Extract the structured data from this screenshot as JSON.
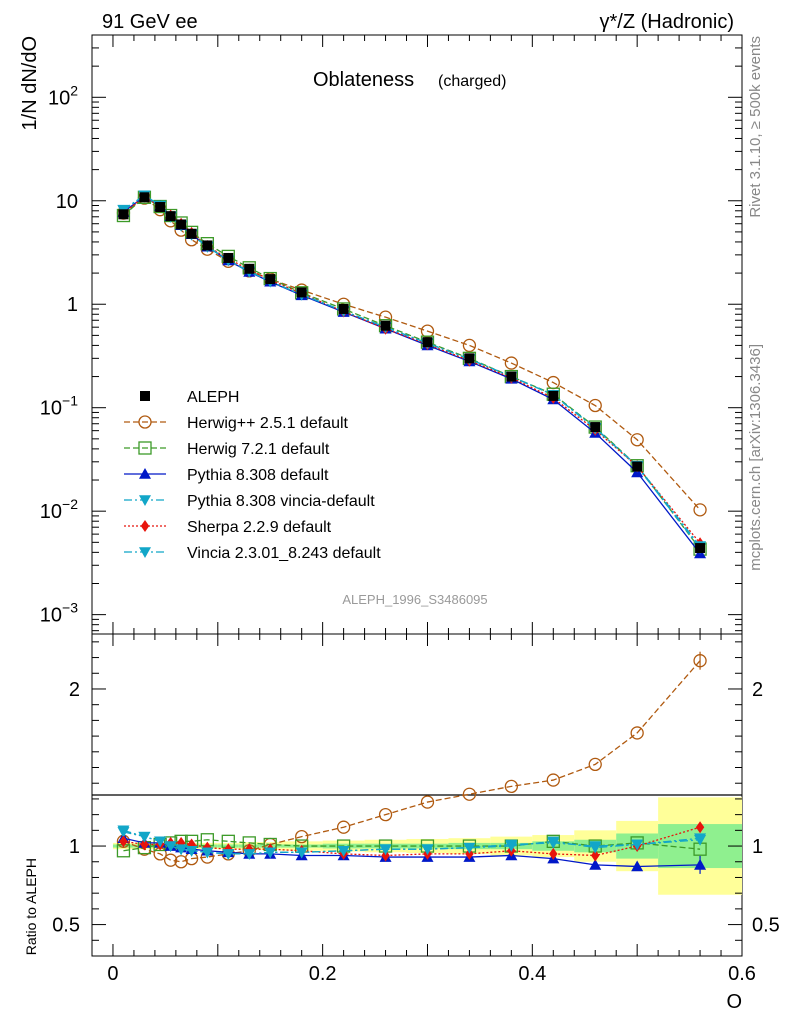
{
  "header": {
    "left": "91 GeV ee",
    "right": "γ*/Z (Hadronic)"
  },
  "side_labels": {
    "rivet": "Rivet 3.1.10, ≥ 500k events",
    "mcplots": "mcplots.cern.ch [arXiv:1306.3436]"
  },
  "chart_data": [
    {
      "panel": "main",
      "type": "line",
      "title": "Oblateness",
      "subtitle": "(charged)",
      "watermark": "ALEPH_1996_S3486095",
      "ylabel": "1/N dN/dO",
      "xlabel": "O",
      "yscale": "log",
      "xlim": [
        -0.02,
        0.6
      ],
      "ylim": [
        0.00065,
        400
      ],
      "y_tick_labels": [
        "10^-3",
        "10^-2",
        "10^-1",
        "1",
        "10",
        "10^2"
      ],
      "legend_position": "center-left",
      "x": [
        0.01,
        0.03,
        0.045,
        0.055,
        0.065,
        0.075,
        0.09,
        0.11,
        0.13,
        0.15,
        0.18,
        0.22,
        0.26,
        0.3,
        0.34,
        0.38,
        0.42,
        0.46,
        0.5,
        0.56
      ],
      "series": [
        {
          "name": "ALEPH",
          "style": "data",
          "color": "#000000",
          "marker": "square-filled",
          "values": [
            7.4,
            10.8,
            8.7,
            7.1,
            5.9,
            4.8,
            3.7,
            2.8,
            2.2,
            1.75,
            1.3,
            0.9,
            0.62,
            0.43,
            0.3,
            0.2,
            0.13,
            0.065,
            0.027,
            0.0044
          ]
        },
        {
          "name": "Herwig++ 2.5.1 default",
          "color": "#b05a10",
          "dash": "6,3",
          "marker": "circle-open",
          "values": [
            7.6,
            10.6,
            8.2,
            6.4,
            5.2,
            4.2,
            3.4,
            2.6,
            2.1,
            1.75,
            1.37,
            1.0,
            0.75,
            0.55,
            0.4,
            0.27,
            0.175,
            0.105,
            0.049,
            0.0103
          ]
        },
        {
          "name": "Herwig 7.2.1 default",
          "color": "#3c9a28",
          "dash": "6,3",
          "marker": "square-open",
          "values": [
            7.2,
            10.8,
            8.8,
            7.2,
            6.1,
            4.95,
            3.85,
            2.9,
            2.25,
            1.77,
            1.29,
            0.9,
            0.62,
            0.43,
            0.3,
            0.2,
            0.135,
            0.065,
            0.0275,
            0.0043
          ]
        },
        {
          "name": "Pythia 8.308 default",
          "color": "#0018c8",
          "dash": "",
          "marker": "triangle-up",
          "values": [
            7.8,
            11.0,
            8.9,
            7.1,
            5.8,
            4.75,
            3.6,
            2.65,
            2.05,
            1.65,
            1.22,
            0.84,
            0.58,
            0.4,
            0.28,
            0.19,
            0.12,
            0.057,
            0.0237,
            0.0039
          ]
        },
        {
          "name": "Pythia 8.308 vincia-default",
          "color": "#12a6c8",
          "dash": "8,3,2,3",
          "marker": "triangle-down",
          "values": [
            8.1,
            11.3,
            8.9,
            7.0,
            5.75,
            4.7,
            3.58,
            2.66,
            2.08,
            1.66,
            1.24,
            0.86,
            0.6,
            0.42,
            0.295,
            0.2,
            0.133,
            0.064,
            0.027,
            0.0044
          ]
        },
        {
          "name": "Sherpa 2.2.9 default",
          "color": "#e8140c",
          "dash": "2,2",
          "marker": "diamond",
          "values": [
            7.6,
            11.0,
            8.8,
            7.2,
            6.0,
            4.9,
            3.65,
            2.75,
            2.16,
            1.72,
            1.27,
            0.85,
            0.58,
            0.41,
            0.285,
            0.195,
            0.124,
            0.061,
            0.0272,
            0.0049
          ]
        },
        {
          "name": "Vincia 2.3.01_8.243 default",
          "color": "#12a6c8",
          "dash": "8,3,2,3",
          "marker": "triangle-down",
          "values": [
            8.2,
            11.3,
            9.0,
            7.1,
            5.8,
            4.75,
            3.62,
            2.66,
            2.07,
            1.66,
            1.24,
            0.86,
            0.6,
            0.42,
            0.295,
            0.2,
            0.133,
            0.063,
            0.0275,
            0.0046
          ]
        }
      ]
    },
    {
      "panel": "ratio",
      "type": "line",
      "ylabel": "Ratio to ALEPH",
      "xlabel": "O",
      "xlim": [
        -0.02,
        0.6
      ],
      "ylim": [
        0.3,
        2.35
      ],
      "x_tick_labels": [
        "0",
        "0.2",
        "0.4",
        "0.6"
      ],
      "y_tick_labels": [
        "0.5",
        "1",
        "2"
      ],
      "x": [
        0.01,
        0.03,
        0.045,
        0.055,
        0.065,
        0.075,
        0.09,
        0.11,
        0.13,
        0.15,
        0.18,
        0.22,
        0.26,
        0.3,
        0.34,
        0.38,
        0.42,
        0.46,
        0.5,
        0.56
      ],
      "band_edges": [
        0.0,
        0.02,
        0.04,
        0.05,
        0.06,
        0.07,
        0.08,
        0.1,
        0.12,
        0.14,
        0.16,
        0.2,
        0.24,
        0.28,
        0.32,
        0.36,
        0.4,
        0.44,
        0.48,
        0.52,
        0.6
      ],
      "uncertainty_stat": [
        0.01,
        0.01,
        0.01,
        0.01,
        0.01,
        0.01,
        0.01,
        0.01,
        0.01,
        0.01,
        0.01,
        0.015,
        0.015,
        0.015,
        0.02,
        0.02,
        0.03,
        0.04,
        0.08,
        0.14
      ],
      "uncertainty_total": [
        0.02,
        0.02,
        0.02,
        0.02,
        0.02,
        0.02,
        0.02,
        0.02,
        0.025,
        0.025,
        0.03,
        0.035,
        0.04,
        0.045,
        0.05,
        0.06,
        0.07,
        0.1,
        0.16,
        0.31
      ],
      "series": [
        {
          "name": "Herwig++ 2.5.1 default",
          "color": "#b05a10",
          "dash": "6,3",
          "marker": "circle-open",
          "values": [
            1.03,
            0.98,
            0.95,
            0.91,
            0.9,
            0.92,
            0.93,
            0.95,
            0.97,
            1.01,
            1.06,
            1.12,
            1.2,
            1.28,
            1.33,
            1.38,
            1.42,
            1.52,
            1.72,
            2.18
          ]
        },
        {
          "name": "Herwig 7.2.1 default",
          "color": "#3c9a28",
          "dash": "6,3",
          "marker": "square-open",
          "values": [
            0.97,
            0.99,
            1.01,
            1.02,
            1.03,
            1.03,
            1.04,
            1.03,
            1.02,
            1.01,
            1.0,
            1.0,
            1.0,
            1.0,
            1.0,
            1.0,
            1.03,
            1.0,
            1.02,
            0.98
          ]
        },
        {
          "name": "Pythia 8.308 default",
          "color": "#0018c8",
          "dash": "",
          "marker": "triangle-up",
          "values": [
            1.05,
            1.02,
            1.02,
            1.0,
            0.99,
            0.98,
            0.97,
            0.96,
            0.95,
            0.95,
            0.94,
            0.94,
            0.93,
            0.93,
            0.93,
            0.94,
            0.92,
            0.88,
            0.87,
            0.88
          ]
        },
        {
          "name": "Pythia 8.308 vincia-default",
          "color": "#12a6c8",
          "dash": "8,3,2,3",
          "marker": "triangle-down",
          "values": [
            1.09,
            1.06,
            1.03,
            1.0,
            0.98,
            0.97,
            0.96,
            0.95,
            0.95,
            0.96,
            0.96,
            0.97,
            0.98,
            0.98,
            0.99,
            1.01,
            1.02,
            1.0,
            1.01,
            1.04
          ]
        },
        {
          "name": "Sherpa 2.2.9 default",
          "color": "#e8140c",
          "dash": "2,2",
          "marker": "diamond",
          "values": [
            1.03,
            1.01,
            1.01,
            1.02,
            1.02,
            1.01,
            0.99,
            0.98,
            0.98,
            0.98,
            0.97,
            0.95,
            0.94,
            0.95,
            0.95,
            0.97,
            0.95,
            0.94,
            1.0,
            1.12
          ]
        },
        {
          "name": "Vincia 2.3.01_8.243 default",
          "color": "#12a6c8",
          "dash": "8,3,2,3",
          "marker": "triangle-down",
          "values": [
            1.1,
            1.06,
            1.03,
            1.0,
            0.98,
            0.97,
            0.96,
            0.95,
            0.95,
            0.96,
            0.96,
            0.97,
            0.98,
            0.98,
            0.99,
            1.0,
            1.03,
            0.99,
            1.01,
            1.05
          ]
        }
      ]
    }
  ]
}
